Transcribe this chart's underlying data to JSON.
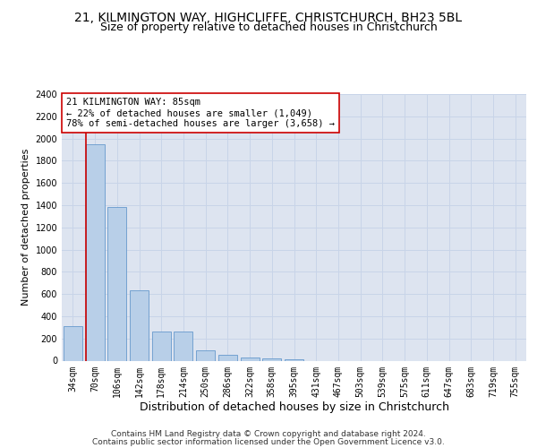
{
  "title1": "21, KILMINGTON WAY, HIGHCLIFFE, CHRISTCHURCH, BH23 5BL",
  "title2": "Size of property relative to detached houses in Christchurch",
  "xlabel": "Distribution of detached houses by size in Christchurch",
  "ylabel": "Number of detached properties",
  "categories": [
    "34sqm",
    "70sqm",
    "106sqm",
    "142sqm",
    "178sqm",
    "214sqm",
    "250sqm",
    "286sqm",
    "322sqm",
    "358sqm",
    "395sqm",
    "431sqm",
    "467sqm",
    "503sqm",
    "539sqm",
    "575sqm",
    "611sqm",
    "647sqm",
    "683sqm",
    "719sqm",
    "755sqm"
  ],
  "values": [
    310,
    1950,
    1380,
    630,
    265,
    265,
    95,
    50,
    30,
    20,
    15,
    0,
    0,
    0,
    0,
    0,
    0,
    0,
    0,
    0,
    0
  ],
  "bar_color": "#b8cfe8",
  "bar_edge_color": "#6699cc",
  "vline_color": "#cc0000",
  "annotation_text": "21 KILMINGTON WAY: 85sqm\n← 22% of detached houses are smaller (1,049)\n78% of semi-detached houses are larger (3,658) →",
  "annotation_box_facecolor": "#ffffff",
  "annotation_box_edgecolor": "#cc0000",
  "ylim": [
    0,
    2400
  ],
  "yticks": [
    0,
    200,
    400,
    600,
    800,
    1000,
    1200,
    1400,
    1600,
    1800,
    2000,
    2200,
    2400
  ],
  "grid_color": "#c8d4e8",
  "plot_bg_color": "#dde4f0",
  "fig_bg_color": "#ffffff",
  "footer1": "Contains HM Land Registry data © Crown copyright and database right 2024.",
  "footer2": "Contains public sector information licensed under the Open Government Licence v3.0.",
  "title1_fontsize": 10,
  "title2_fontsize": 9,
  "xlabel_fontsize": 9,
  "ylabel_fontsize": 8,
  "tick_fontsize": 7,
  "annotation_fontsize": 7.5,
  "footer_fontsize": 6.5
}
